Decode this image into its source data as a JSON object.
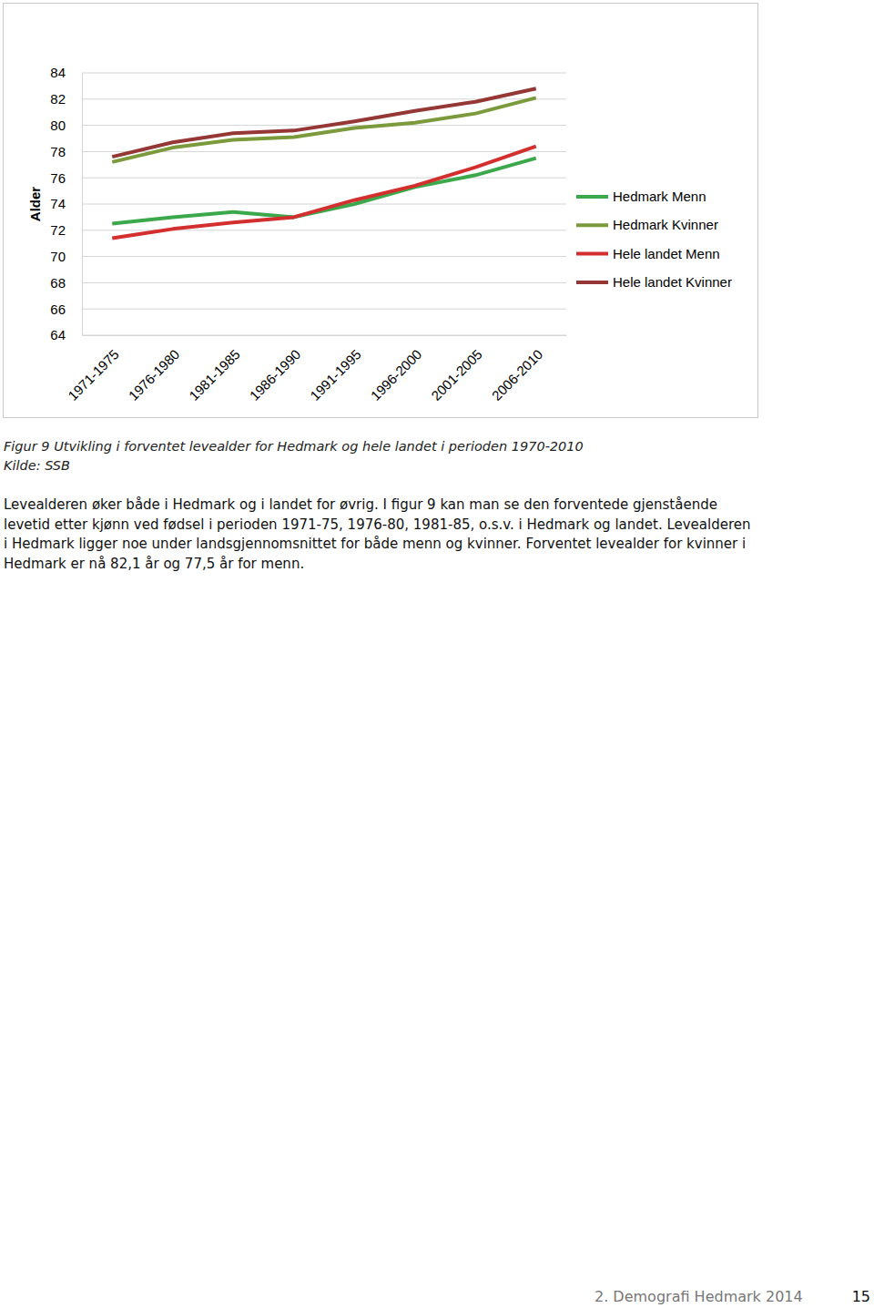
{
  "chart_data": {
    "type": "line",
    "title": "Figur 9 Utvikling i forventet levealder for Hedmark og hele landet i perioden 1970-2010",
    "subtitle": "Kilde: SSB",
    "y_label": "Alder",
    "categories": [
      "1971-1975",
      "1976-1980",
      "1981-1985",
      "1986-1990",
      "1991-1995",
      "1996-2000",
      "2001-2005",
      "2006-2010"
    ],
    "series": [
      {
        "name": "Hedmark Menn",
        "color": "#3ba84b",
        "values": [
          72.5,
          73.0,
          73.4,
          73.0,
          74.0,
          75.3,
          76.2,
          77.5
        ]
      },
      {
        "name": "Hedmark Kvinner",
        "color": "#7b9a3c",
        "values": [
          77.2,
          78.3,
          78.9,
          79.1,
          79.8,
          80.2,
          80.9,
          82.1
        ]
      },
      {
        "name": "Hele landet Menn",
        "color": "#d32f2f",
        "values": [
          71.4,
          72.1,
          72.6,
          73.0,
          74.3,
          75.4,
          76.8,
          78.4
        ]
      },
      {
        "name": "Hele landet Kvinner",
        "color": "#953735",
        "values": [
          77.6,
          78.7,
          79.4,
          79.6,
          80.3,
          81.1,
          81.8,
          82.8
        ]
      }
    ],
    "ylim": [
      64,
      84
    ],
    "yticks": [
      64,
      66,
      68,
      70,
      72,
      74,
      76,
      78,
      80,
      82,
      84
    ],
    "grid": true,
    "legend": "right"
  },
  "body": [
    "Levealderen øker både i Hedmark og i landet for øvrig. I figur 9 kan man se den forventede gjenstående",
    "levetid etter kjønn ved fødsel i perioden 1971-75, 1976-80, 1981-85, o.s.v. i Hedmark og landet. Levealderen",
    "i Hedmark ligger noe under landsgjennomsnittet for både menn og kvinner. Forventet levealder for kvinner i",
    "Hedmark er nå 82,1 år og 77,5 år for menn."
  ],
  "footer": {
    "section": "2. Demografi Hedmark 2014",
    "page": "15"
  }
}
